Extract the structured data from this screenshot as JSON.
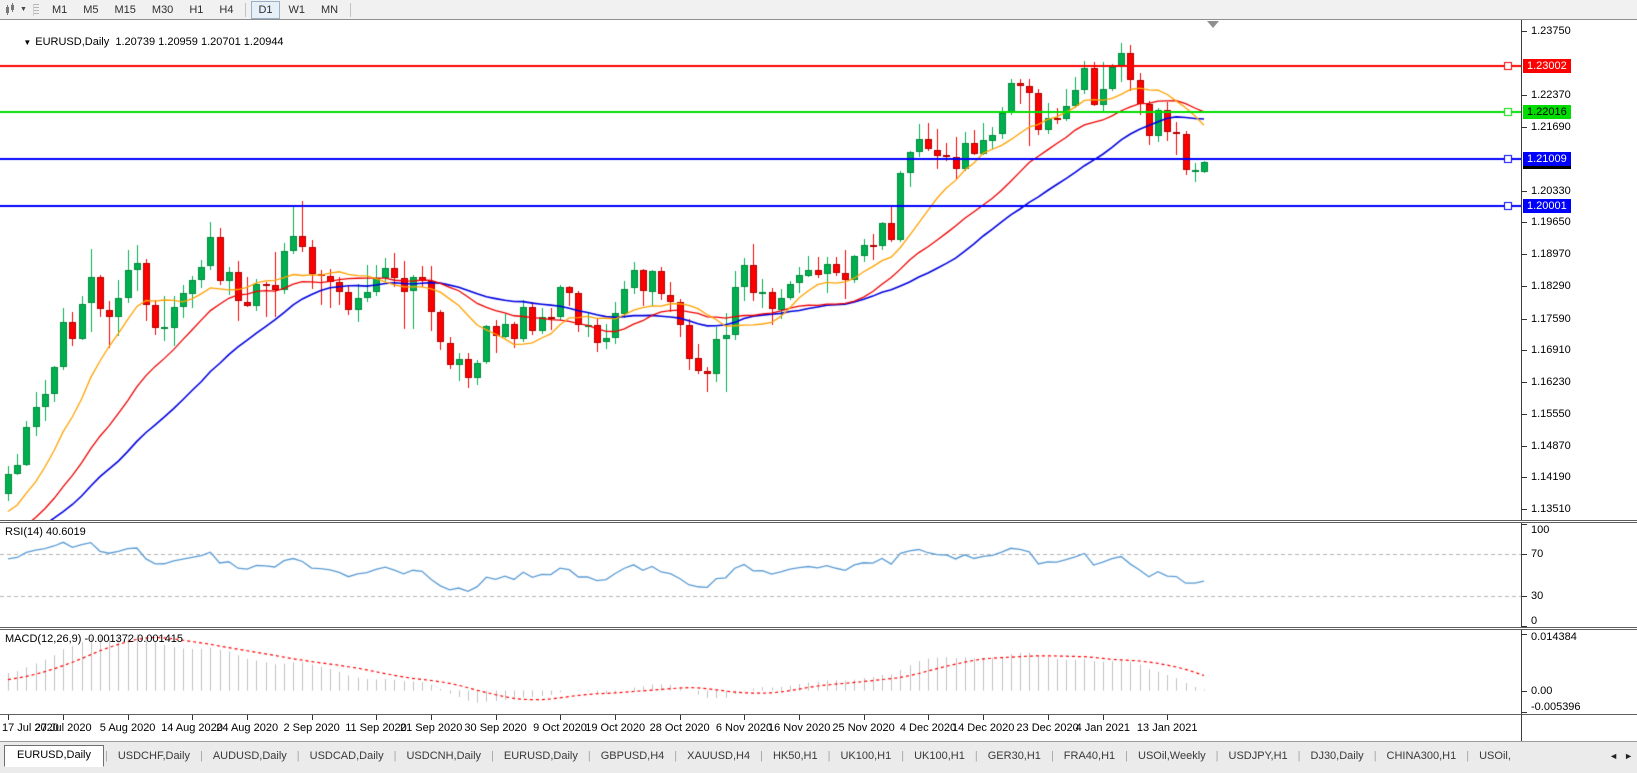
{
  "toolbar": {
    "periodicity_caret": "▼",
    "timeframes": [
      {
        "label": "M1",
        "active": false
      },
      {
        "label": "M5",
        "active": false
      },
      {
        "label": "M15",
        "active": false
      },
      {
        "label": "M30",
        "active": false
      },
      {
        "label": "H1",
        "active": false
      },
      {
        "label": "H4",
        "active": false
      },
      {
        "label": "D1",
        "active": true
      },
      {
        "label": "W1",
        "active": false
      },
      {
        "label": "MN",
        "active": false
      }
    ]
  },
  "chart": {
    "title_marker": "▼",
    "title": "EURUSD,Daily  1.20739 1.20959 1.20701 1.20944",
    "current_price_label": {
      "label": "1.20944",
      "value": 1.20944,
      "bg": "#000000",
      "fg": "#ffffff"
    },
    "price_axis": {
      "ticks": [
        "1.23750",
        "1.22370",
        "1.21690",
        "1.20330",
        "1.19650",
        "1.18970",
        "1.18290",
        "1.17590",
        "1.16910",
        "1.16230",
        "1.15550",
        "1.14870",
        "1.14190",
        "1.13510"
      ]
    },
    "hlines": [
      {
        "label": "1.23002",
        "value": 1.23002,
        "color": "#ff0000",
        "text": "#ffffff"
      },
      {
        "label": "1.22016",
        "value": 1.22016,
        "color": "#00dd00",
        "text": "#000000"
      },
      {
        "label": "1.21009",
        "value": 1.21009,
        "color": "#0000ff",
        "text": "#ffffff"
      },
      {
        "label": "1.20001",
        "value": 1.20001,
        "color": "#0000ff",
        "text": "#ffffff"
      }
    ],
    "colors": {
      "bull": "#00b050",
      "bull_border": "#00818a0",
      "bear": "#ff0000",
      "bear_border": "#c00000",
      "ma_fast": "#ffa200",
      "ma_mid": "#ee0000",
      "ma_slow": "#0000e0",
      "rsi_line": "#5a9bd4",
      "macd_hist": "#c0c0c0",
      "macd_signal": "#ff0000",
      "level_dash": "#b5b5b5"
    }
  },
  "rsi": {
    "label": "RSI(14) 40.6019",
    "period": 14,
    "levels": [
      70,
      30
    ],
    "scale": [
      {
        "label": "100",
        "value": 100
      },
      {
        "label": "70",
        "value": 70
      },
      {
        "label": "30",
        "value": 30
      },
      {
        "label": "0",
        "value": 0
      }
    ]
  },
  "macd": {
    "label": "MACD(12,26,9) -0.001372 0.001415",
    "fast": 12,
    "slow": 26,
    "signal": 9,
    "scale": [
      {
        "label": "0.014384",
        "value": 0.014384
      },
      {
        "label": "0.00",
        "value": 0
      },
      {
        "label": "-0.005396",
        "value": -0.005396
      }
    ]
  },
  "chart_data": {
    "type": "candlestick",
    "symbol": "EURUSD",
    "timeframe": "Daily",
    "sma_periods": {
      "fast": 10,
      "mid": 20,
      "slow": 30
    },
    "history_closes": [
      1.1134,
      1.1168,
      1.1234,
      1.1338,
      1.1289,
      1.1294,
      1.134,
      1.1374,
      1.1298,
      1.1255,
      1.1324,
      1.1264,
      1.1243,
      1.1206,
      1.1177,
      1.1261,
      1.1308,
      1.1251,
      1.1218,
      1.1219,
      1.1242,
      1.1234,
      1.1251,
      1.124,
      1.1248,
      1.1308,
      1.1274,
      1.1329,
      1.1284,
      1.13,
      1.1344,
      1.1396,
      1.1411,
      1.1385
    ],
    "ohlc": [
      [
        1.1385,
        1.1444,
        1.137,
        1.1427
      ],
      [
        1.1427,
        1.1468,
        1.1422,
        1.1446
      ],
      [
        1.1446,
        1.154,
        1.1443,
        1.1527
      ],
      [
        1.1527,
        1.1601,
        1.1507,
        1.157
      ],
      [
        1.157,
        1.1627,
        1.154,
        1.1598
      ],
      [
        1.1598,
        1.1658,
        1.1581,
        1.1655
      ],
      [
        1.1655,
        1.1782,
        1.165,
        1.1752
      ],
      [
        1.1752,
        1.1773,
        1.17,
        1.1716
      ],
      [
        1.1716,
        1.1807,
        1.1712,
        1.1791
      ],
      [
        1.1791,
        1.1909,
        1.1731,
        1.1847
      ],
      [
        1.1847,
        1.1853,
        1.1762,
        1.1778
      ],
      [
        1.1778,
        1.1797,
        1.1696,
        1.1762
      ],
      [
        1.1762,
        1.1842,
        1.1722,
        1.1803
      ],
      [
        1.1803,
        1.1905,
        1.1791,
        1.1863
      ],
      [
        1.1863,
        1.1916,
        1.1818,
        1.1878
      ],
      [
        1.1878,
        1.1886,
        1.1754,
        1.1787
      ],
      [
        1.1787,
        1.1798,
        1.1722,
        1.1738
      ],
      [
        1.1738,
        1.1808,
        1.1711,
        1.174
      ],
      [
        1.174,
        1.1808,
        1.1701,
        1.1784
      ],
      [
        1.1784,
        1.1831,
        1.1761,
        1.1813
      ],
      [
        1.1813,
        1.1851,
        1.1782,
        1.1842
      ],
      [
        1.1842,
        1.1884,
        1.1823,
        1.187
      ],
      [
        1.187,
        1.1966,
        1.1863,
        1.1933
      ],
      [
        1.1933,
        1.1952,
        1.1829,
        1.1839
      ],
      [
        1.1839,
        1.1869,
        1.1809,
        1.1858
      ],
      [
        1.1858,
        1.1882,
        1.1754,
        1.1795
      ],
      [
        1.1795,
        1.1848,
        1.1783,
        1.1786
      ],
      [
        1.1786,
        1.1843,
        1.1774,
        1.1833
      ],
      [
        1.1833,
        1.1838,
        1.1763,
        1.183
      ],
      [
        1.183,
        1.1902,
        1.1763,
        1.182
      ],
      [
        1.182,
        1.192,
        1.1811,
        1.1903
      ],
      [
        1.1903,
        1.1997,
        1.1897,
        1.1936
      ],
      [
        1.1936,
        1.2011,
        1.1901,
        1.1912
      ],
      [
        1.1912,
        1.1927,
        1.1823,
        1.1854
      ],
      [
        1.1854,
        1.1864,
        1.1789,
        1.185
      ],
      [
        1.185,
        1.1865,
        1.1781,
        1.1838
      ],
      [
        1.1838,
        1.1849,
        1.1789,
        1.1816
      ],
      [
        1.1816,
        1.1828,
        1.1765,
        1.1777
      ],
      [
        1.1777,
        1.1834,
        1.1753,
        1.1802
      ],
      [
        1.1802,
        1.1874,
        1.1795,
        1.1815
      ],
      [
        1.1815,
        1.1874,
        1.1808,
        1.1845
      ],
      [
        1.1845,
        1.1888,
        1.1839,
        1.1867
      ],
      [
        1.1867,
        1.19,
        1.1827,
        1.1845
      ],
      [
        1.1845,
        1.1882,
        1.1737,
        1.1816
      ],
      [
        1.1816,
        1.1852,
        1.1736,
        1.1847
      ],
      [
        1.1847,
        1.1871,
        1.1826,
        1.1839
      ],
      [
        1.1839,
        1.1872,
        1.1732,
        1.1772
      ],
      [
        1.1772,
        1.1778,
        1.1692,
        1.1707
      ],
      [
        1.1707,
        1.1719,
        1.1651,
        1.1659
      ],
      [
        1.1659,
        1.1686,
        1.1626,
        1.1672
      ],
      [
        1.1672,
        1.1686,
        1.1612,
        1.1631
      ],
      [
        1.1631,
        1.167,
        1.1616,
        1.1664
      ],
      [
        1.1664,
        1.1745,
        1.1661,
        1.1742
      ],
      [
        1.1742,
        1.1755,
        1.1684,
        1.172
      ],
      [
        1.172,
        1.1769,
        1.1717,
        1.1748
      ],
      [
        1.1748,
        1.1751,
        1.1695,
        1.1716
      ],
      [
        1.1716,
        1.1798,
        1.1708,
        1.1784
      ],
      [
        1.1784,
        1.1795,
        1.1724,
        1.1733
      ],
      [
        1.1733,
        1.1781,
        1.1725,
        1.1763
      ],
      [
        1.1763,
        1.1781,
        1.1733,
        1.1761
      ],
      [
        1.1761,
        1.1831,
        1.1755,
        1.1826
      ],
      [
        1.1826,
        1.1829,
        1.1786,
        1.1813
      ],
      [
        1.1813,
        1.1818,
        1.1731,
        1.1745
      ],
      [
        1.1745,
        1.1772,
        1.1719,
        1.1746
      ],
      [
        1.1746,
        1.1758,
        1.1688,
        1.1708
      ],
      [
        1.1708,
        1.1747,
        1.1694,
        1.1717
      ],
      [
        1.1717,
        1.1794,
        1.1703,
        1.177
      ],
      [
        1.177,
        1.184,
        1.176,
        1.1823
      ],
      [
        1.1823,
        1.1881,
        1.1813,
        1.1862
      ],
      [
        1.1862,
        1.1866,
        1.1786,
        1.1816
      ],
      [
        1.1816,
        1.1863,
        1.1785,
        1.186
      ],
      [
        1.186,
        1.187,
        1.18,
        1.181
      ],
      [
        1.181,
        1.1837,
        1.1773,
        1.1795
      ],
      [
        1.1795,
        1.18,
        1.1718,
        1.1746
      ],
      [
        1.1746,
        1.1759,
        1.165,
        1.1674
      ],
      [
        1.1674,
        1.1704,
        1.164,
        1.1647
      ],
      [
        1.1647,
        1.1656,
        1.1603,
        1.164
      ],
      [
        1.164,
        1.174,
        1.1623,
        1.1715
      ],
      [
        1.1715,
        1.1771,
        1.1602,
        1.1723
      ],
      [
        1.1723,
        1.1861,
        1.1713,
        1.1826
      ],
      [
        1.1826,
        1.1888,
        1.1795,
        1.1874
      ],
      [
        1.1874,
        1.1918,
        1.1795,
        1.1813
      ],
      [
        1.1813,
        1.1843,
        1.1781,
        1.1815
      ],
      [
        1.1815,
        1.1824,
        1.1745,
        1.1779
      ],
      [
        1.1779,
        1.1823,
        1.1758,
        1.1804
      ],
      [
        1.1804,
        1.1839,
        1.1799,
        1.1834
      ],
      [
        1.1834,
        1.1869,
        1.1814,
        1.1852
      ],
      [
        1.1852,
        1.1894,
        1.1849,
        1.1864
      ],
      [
        1.1864,
        1.1891,
        1.1846,
        1.1854
      ],
      [
        1.1854,
        1.189,
        1.1813,
        1.1876
      ],
      [
        1.1876,
        1.189,
        1.1849,
        1.1857
      ],
      [
        1.1857,
        1.1906,
        1.18,
        1.1842
      ],
      [
        1.1842,
        1.1895,
        1.1836,
        1.1893
      ],
      [
        1.1893,
        1.193,
        1.188,
        1.1916
      ],
      [
        1.1916,
        1.1941,
        1.1886,
        1.1914
      ],
      [
        1.1914,
        1.1965,
        1.1905,
        1.1963
      ],
      [
        1.1963,
        1.2003,
        1.1923,
        1.1927
      ],
      [
        1.1927,
        1.2076,
        1.1924,
        1.2071
      ],
      [
        1.2071,
        1.2118,
        1.204,
        1.2115
      ],
      [
        1.2115,
        1.2175,
        1.2105,
        1.2143
      ],
      [
        1.2143,
        1.2177,
        1.2116,
        1.2121
      ],
      [
        1.2121,
        1.2165,
        1.2079,
        1.2109
      ],
      [
        1.2109,
        1.2134,
        1.2095,
        1.2106
      ],
      [
        1.2106,
        1.2147,
        1.2058,
        1.2081
      ],
      [
        1.2081,
        1.2159,
        1.2076,
        1.2136
      ],
      [
        1.2136,
        1.2163,
        1.211,
        1.2112
      ],
      [
        1.2112,
        1.2178,
        1.211,
        1.2141
      ],
      [
        1.2141,
        1.217,
        1.2123,
        1.2153
      ],
      [
        1.2153,
        1.2212,
        1.2144,
        1.2199
      ],
      [
        1.2199,
        1.2273,
        1.2195,
        1.2264
      ],
      [
        1.2264,
        1.2272,
        1.2219,
        1.2257
      ],
      [
        1.2257,
        1.2272,
        1.2129,
        1.2243
      ],
      [
        1.2243,
        1.225,
        1.2151,
        1.2164
      ],
      [
        1.2164,
        1.2221,
        1.2154,
        1.2189
      ],
      [
        1.2189,
        1.2211,
        1.2176,
        1.2187
      ],
      [
        1.2187,
        1.225,
        1.2181,
        1.2215
      ],
      [
        1.2215,
        1.2276,
        1.2209,
        1.2249
      ],
      [
        1.2249,
        1.231,
        1.224,
        1.2296
      ],
      [
        1.2296,
        1.2309,
        1.2214,
        1.2216
      ],
      [
        1.2216,
        1.2309,
        1.22,
        1.225
      ],
      [
        1.225,
        1.2304,
        1.2246,
        1.2298
      ],
      [
        1.2298,
        1.2349,
        1.2266,
        1.2327
      ],
      [
        1.2327,
        1.2344,
        1.2245,
        1.227
      ],
      [
        1.227,
        1.2284,
        1.2193,
        1.2219
      ],
      [
        1.2219,
        1.2225,
        1.2131,
        1.215
      ],
      [
        1.215,
        1.221,
        1.2137,
        1.2206
      ],
      [
        1.2206,
        1.2223,
        1.214,
        1.2158
      ],
      [
        1.2158,
        1.218,
        1.211,
        1.2154
      ],
      [
        1.2154,
        1.216,
        1.2065,
        1.2076
      ],
      [
        1.2076,
        1.2092,
        1.2052,
        1.2077
      ],
      [
        1.20739,
        1.20959,
        1.20701,
        1.20944
      ]
    ],
    "date_ticks": [
      {
        "label": "17 Jul 2020",
        "index": 0
      },
      {
        "label": "27 Jul 2020",
        "index": 6
      },
      {
        "label": "5 Aug 2020",
        "index": 13
      },
      {
        "label": "14 Aug 2020",
        "index": 20
      },
      {
        "label": "24 Aug 2020",
        "index": 26
      },
      {
        "label": "2 Sep 2020",
        "index": 33
      },
      {
        "label": "11 Sep 2020",
        "index": 40
      },
      {
        "label": "21 Sep 2020",
        "index": 46
      },
      {
        "label": "30 Sep 2020",
        "index": 53
      },
      {
        "label": "9 Oct 2020",
        "index": 60
      },
      {
        "label": "19 Oct 2020",
        "index": 66
      },
      {
        "label": "28 Oct 2020",
        "index": 73
      },
      {
        "label": "6 Nov 2020",
        "index": 80
      },
      {
        "label": "16 Nov 2020",
        "index": 86
      },
      {
        "label": "25 Nov 2020",
        "index": 93
      },
      {
        "label": "4 Dec 2020",
        "index": 100
      },
      {
        "label": "14 Dec 2020",
        "index": 106
      },
      {
        "label": "23 Dec 2020",
        "index": 113
      },
      {
        "label": "4 Jan 2021",
        "index": 119
      },
      {
        "label": "13 Jan 2021",
        "index": 126
      }
    ]
  },
  "tabs": {
    "items": [
      {
        "label": "EURUSD,Daily",
        "active": true
      },
      {
        "label": "USDCHF,Daily",
        "active": false
      },
      {
        "label": "AUDUSD,Daily",
        "active": false
      },
      {
        "label": "USDCAD,Daily",
        "active": false
      },
      {
        "label": "USDCNH,Daily",
        "active": false
      },
      {
        "label": "EURUSD,Daily",
        "active": false
      },
      {
        "label": "GBPUSD,H4",
        "active": false
      },
      {
        "label": "XAUUSD,H4",
        "active": false
      },
      {
        "label": "HK50,H1",
        "active": false
      },
      {
        "label": "UK100,H1",
        "active": false
      },
      {
        "label": "UK100,H1",
        "active": false
      },
      {
        "label": "GER30,H1",
        "active": false
      },
      {
        "label": "FRA40,H1",
        "active": false
      },
      {
        "label": "USOil,Weekly",
        "active": false
      },
      {
        "label": "USDJPY,H1",
        "active": false
      },
      {
        "label": "DJ30,Daily",
        "active": false
      },
      {
        "label": "CHINA300,H1",
        "active": false
      },
      {
        "label": "USOil,",
        "active": false
      }
    ],
    "scroll_left": "◄",
    "scroll_right": "►"
  }
}
